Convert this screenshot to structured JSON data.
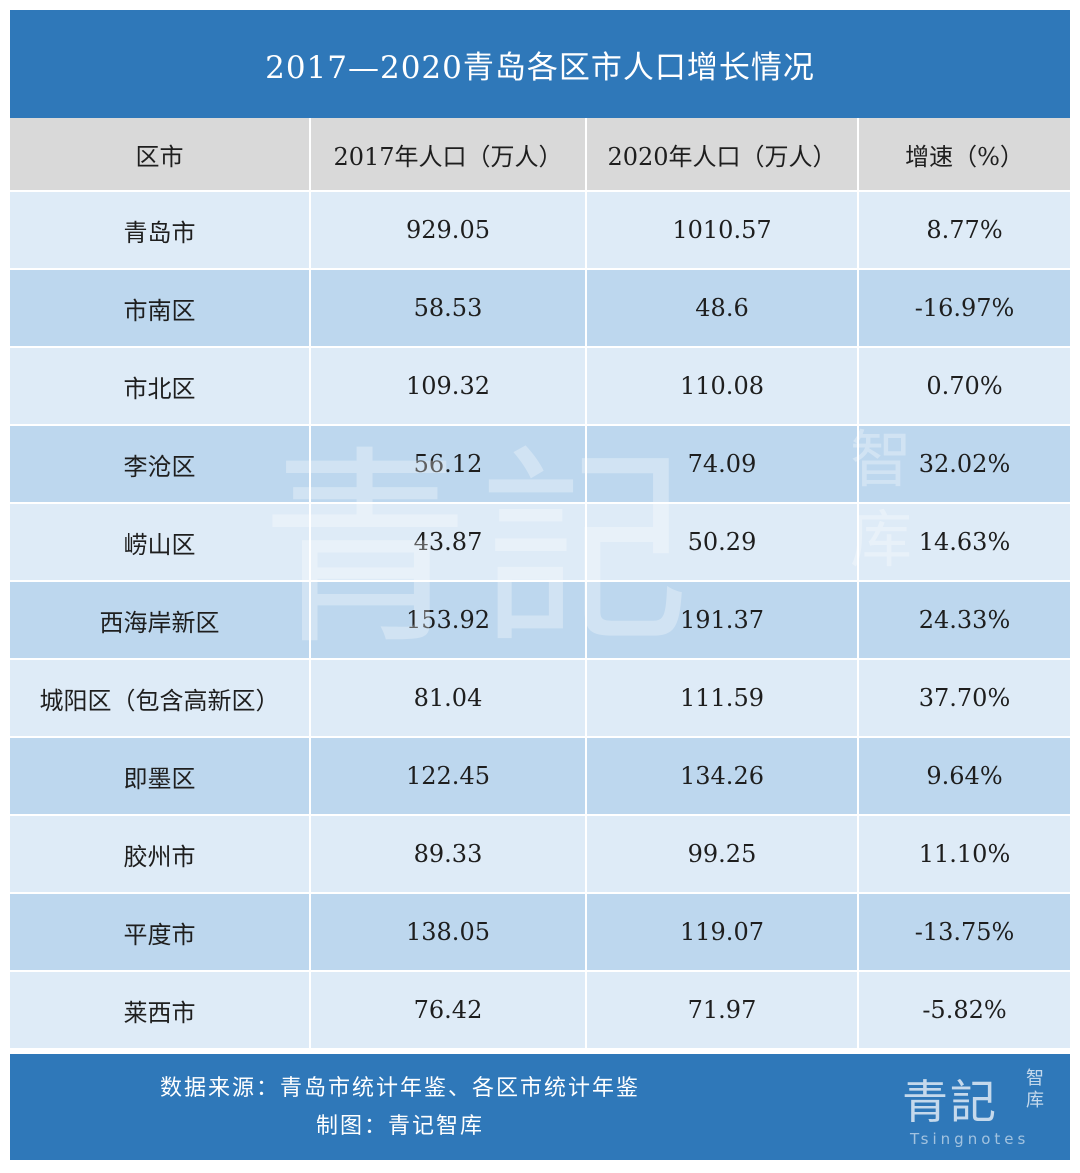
{
  "title": "2017—2020青岛各区市人口增长情况",
  "headers": [
    "区市",
    "2017年人口（万人）",
    "2020年人口（万人）",
    "增速（%）"
  ],
  "rows": [
    [
      "青岛市",
      "929.05",
      "1010.57",
      "8.77%"
    ],
    [
      "市南区",
      "58.53",
      "48.6",
      "-16.97%"
    ],
    [
      "市北区",
      "109.32",
      "110.08",
      "0.70%"
    ],
    [
      "李沧区",
      "56.12",
      "74.09",
      "32.02%"
    ],
    [
      "崂山区",
      "43.87",
      "50.29",
      "14.63%"
    ],
    [
      "西海岸新区",
      "153.92",
      "191.37",
      "24.33%"
    ],
    [
      "城阳区（包含高新区）",
      "81.04",
      "111.59",
      "37.70%"
    ],
    [
      "即墨区",
      "122.45",
      "134.26",
      "9.64%"
    ],
    [
      "胶州市",
      "89.33",
      "99.25",
      "11.10%"
    ],
    [
      "平度市",
      "138.05",
      "119.07",
      "-13.75%"
    ],
    [
      "莱西市",
      "76.42",
      "71.97",
      "-5.82%"
    ]
  ],
  "footer": {
    "source": "数据来源：青岛市统计年鉴、各区市统计年鉴",
    "maker": "制图：青记智库"
  },
  "logo": {
    "big": "青記",
    "small": "智库",
    "latin": "Tsingnotes"
  },
  "colors": {
    "header_blue": "#2f78b9",
    "row_light": "#deebf7",
    "row_dark": "#bdd7ee",
    "head_gray": "#d9d9d9"
  }
}
